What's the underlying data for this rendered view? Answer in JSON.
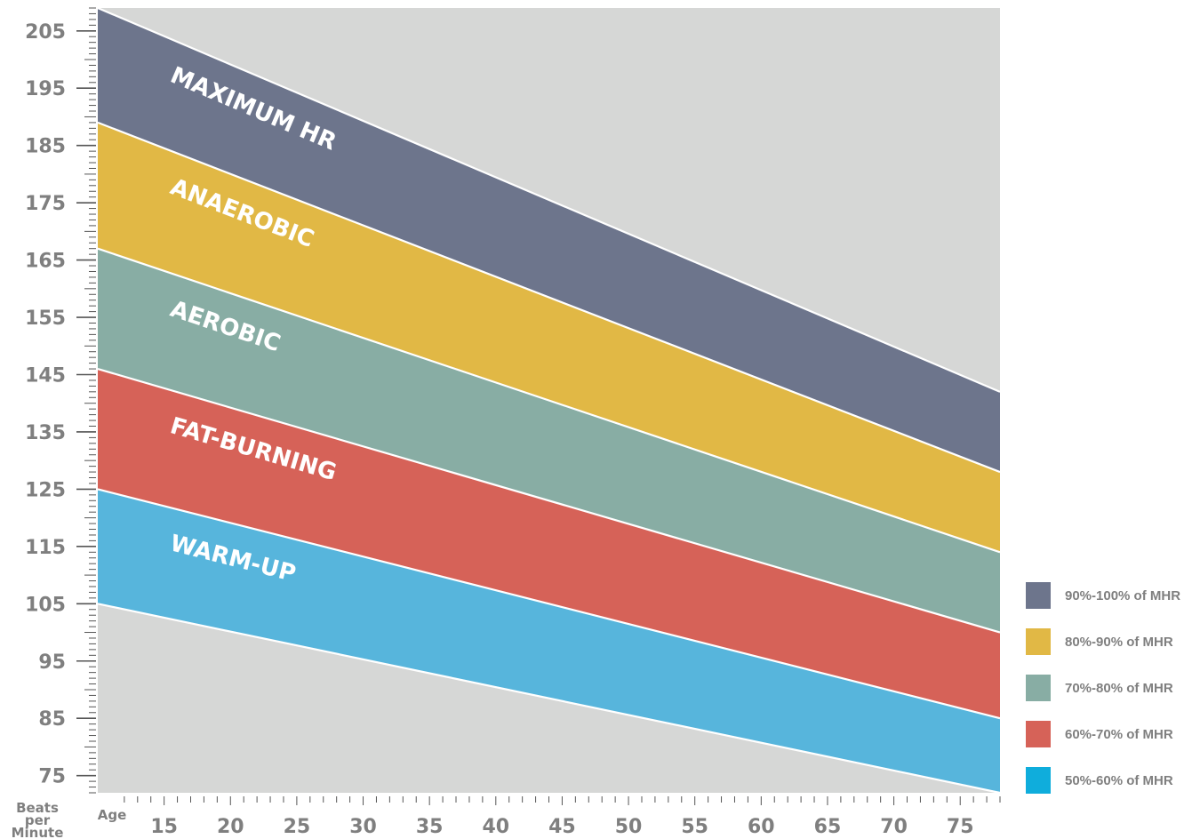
{
  "chart_data": {
    "type": "area",
    "xlabel": "Age",
    "ylabel_lines": [
      "Beats",
      "per",
      "Minute"
    ],
    "xlim": [
      10,
      78
    ],
    "ylim": [
      72,
      209
    ],
    "x_ticks": [
      15,
      20,
      25,
      30,
      35,
      40,
      45,
      50,
      55,
      60,
      65,
      70,
      75
    ],
    "y_ticks": [
      205,
      195,
      185,
      175,
      165,
      155,
      145,
      135,
      125,
      115,
      105,
      95,
      85,
      75
    ],
    "plot_background": "#d6d7d6",
    "boundaries": [
      {
        "name": "100%",
        "values": {
          "10": 209,
          "78": 142
        }
      },
      {
        "name": "90%",
        "values": {
          "10": 189,
          "78": 128
        }
      },
      {
        "name": "80%",
        "values": {
          "10": 167,
          "78": 114
        }
      },
      {
        "name": "70%",
        "values": {
          "10": 146,
          "78": 100
        }
      },
      {
        "name": "60%",
        "values": {
          "10": 125,
          "78": 85
        }
      },
      {
        "name": "50%",
        "values": {
          "10": 105,
          "78": 72
        }
      }
    ],
    "zones": [
      {
        "label": "MAXIMUM HR",
        "legend": "90%-100% of MHR",
        "color": "#6d758c",
        "legend_color": "#6d758c"
      },
      {
        "label": "ANAEROBIC",
        "legend": "80%-90% of MHR",
        "color": "#e1b845",
        "legend_color": "#e1b845"
      },
      {
        "label": "AEROBIC",
        "legend": "70%-80% of MHR",
        "color": "#88ada4",
        "legend_color": "#88ada4"
      },
      {
        "label": "FAT-BURNING",
        "legend": "60%-70% of MHR",
        "color": "#d66258",
        "legend_color": "#d66258"
      },
      {
        "label": "WARM-UP",
        "legend": "50%-60% of MHR",
        "color": "#57b5dc",
        "legend_color": "#0faddc"
      }
    ],
    "legend_placement": "bottom-right"
  }
}
